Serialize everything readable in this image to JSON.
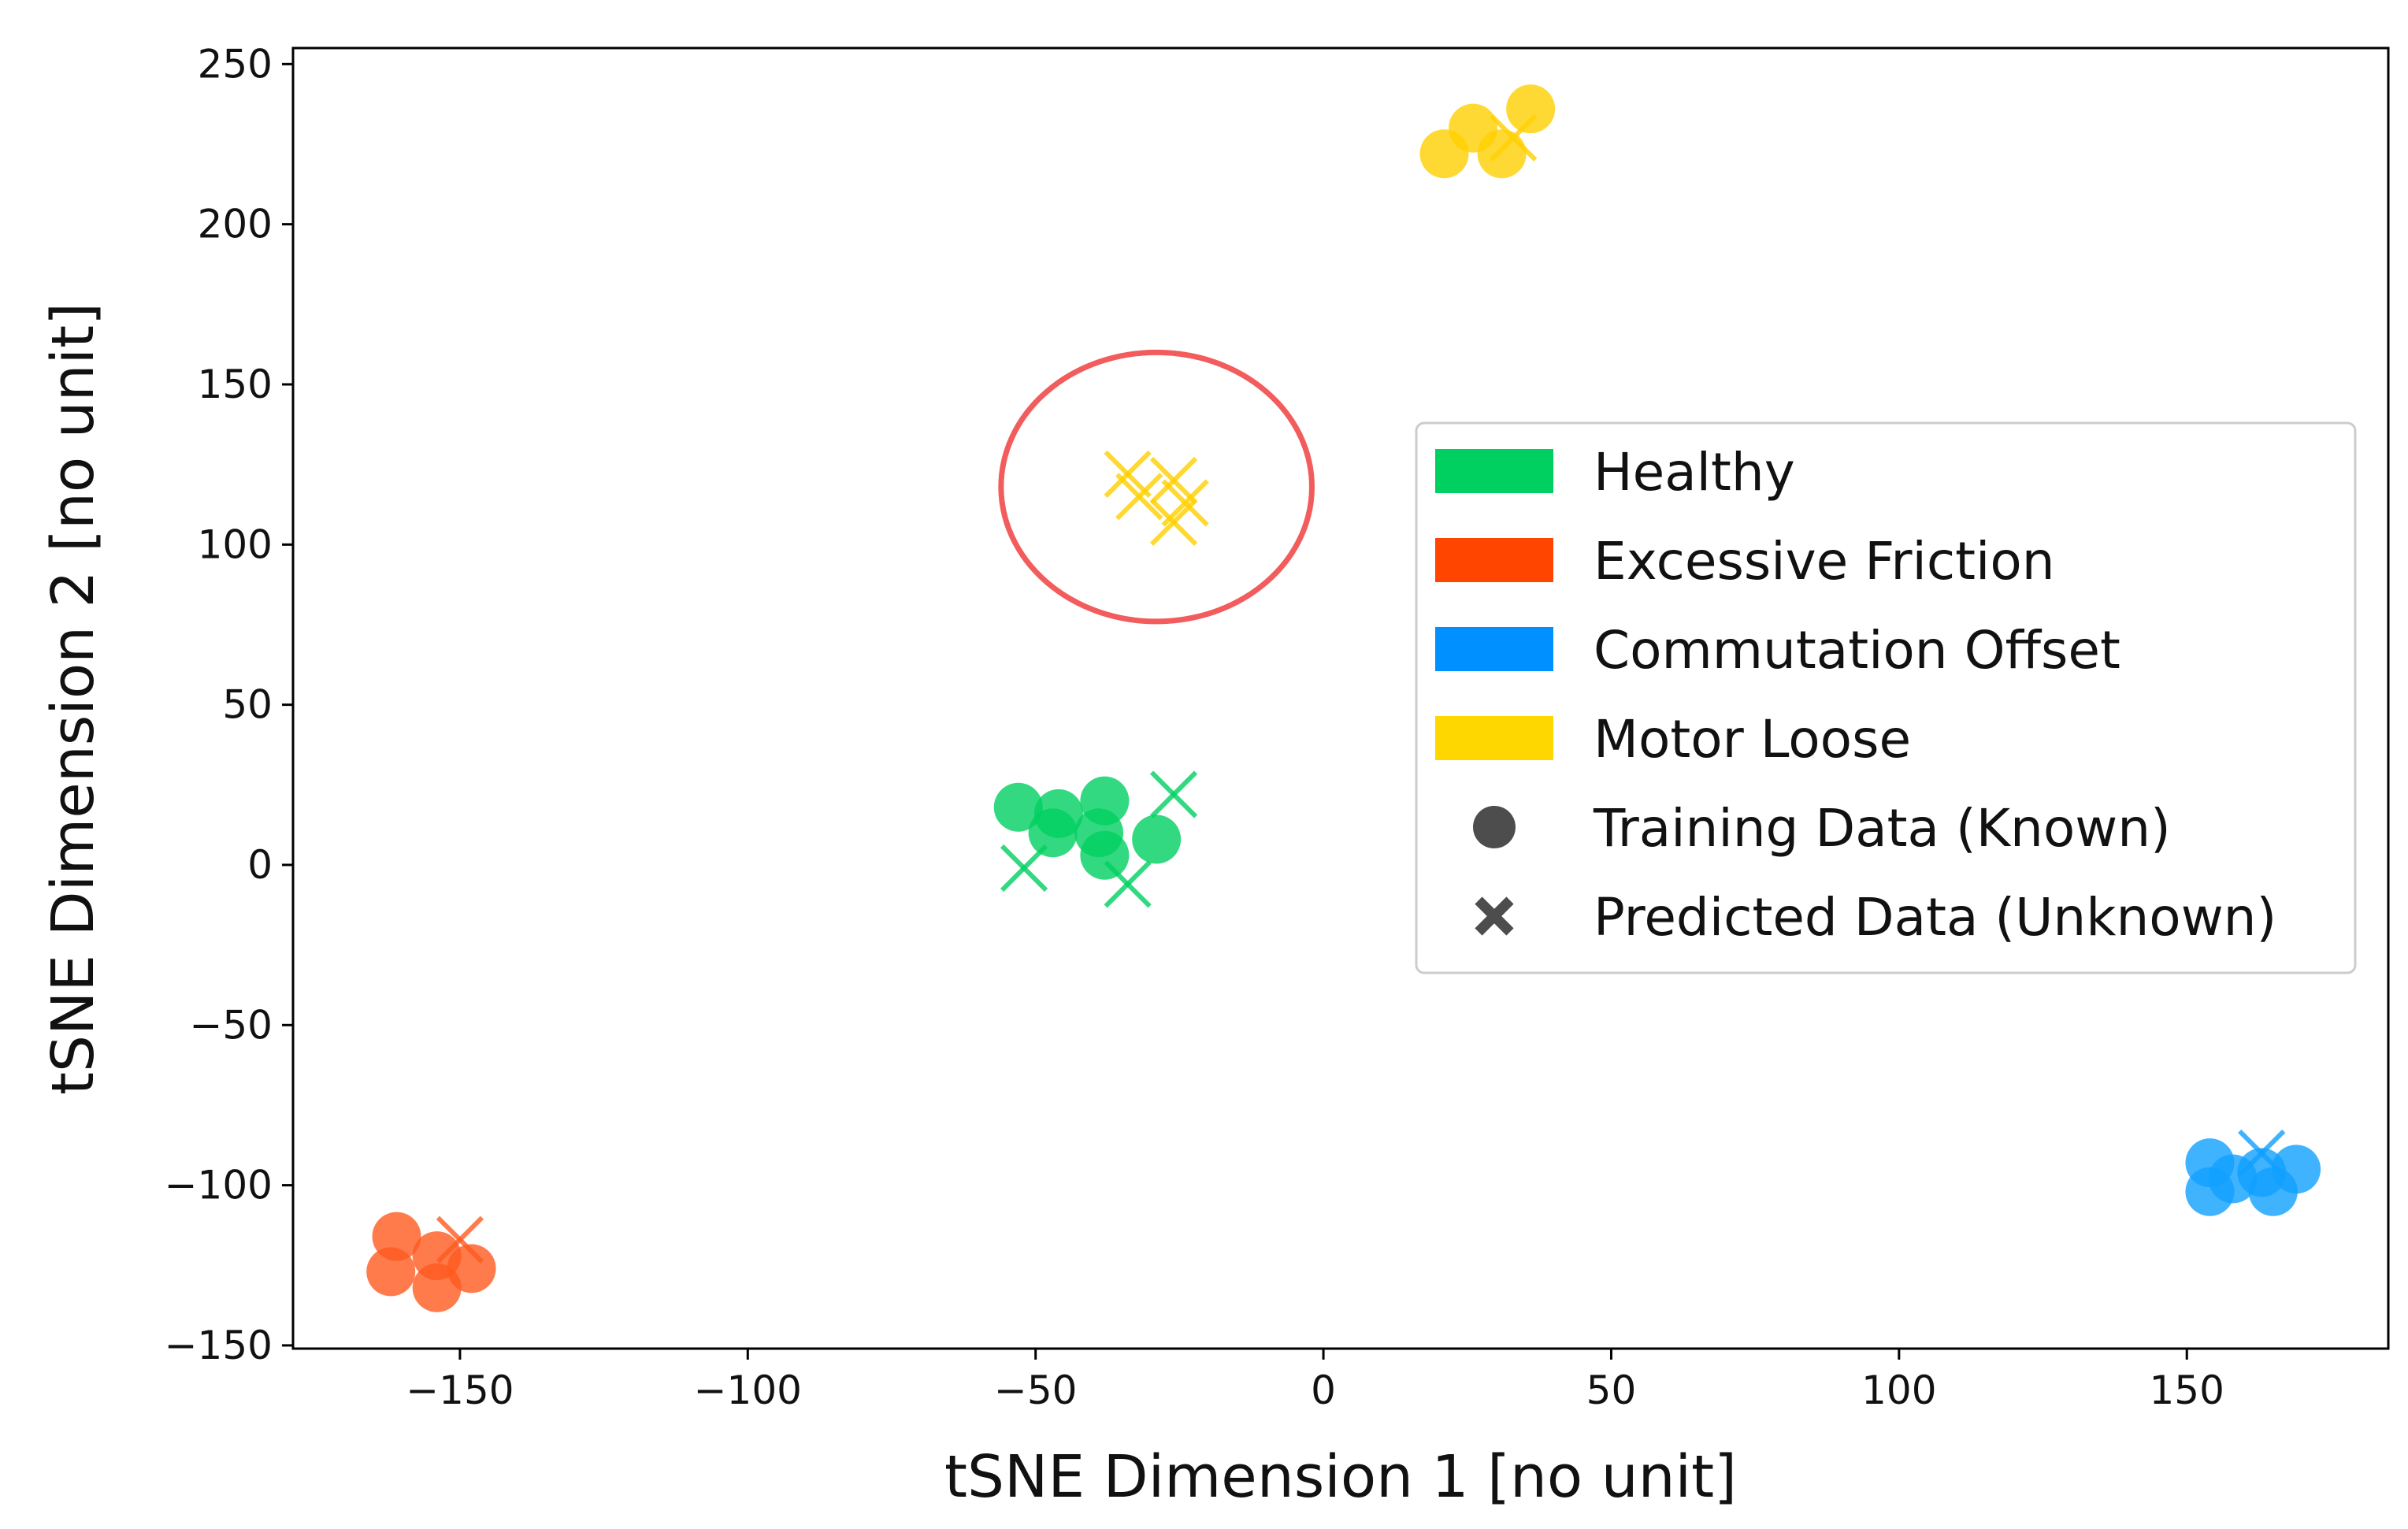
{
  "chart_data": {
    "type": "scatter",
    "xlabel": "tSNE Dimension 1 [no unit]",
    "ylabel": "tSNE Dimension 2 [no unit]",
    "xlim": [
      -179,
      185
    ],
    "ylim": [
      -151,
      255
    ],
    "xticks": [
      -150,
      -100,
      -50,
      0,
      50,
      100,
      150
    ],
    "yticks": [
      -150,
      -100,
      -50,
      0,
      50,
      100,
      150,
      200,
      250
    ],
    "xtick_labels": [
      "−150",
      "−100",
      "−50",
      "0",
      "50",
      "100",
      "150"
    ],
    "ytick_labels": [
      "−150",
      "−100",
      "−50",
      "0",
      "50",
      "100",
      "150",
      "200",
      "250"
    ],
    "grid": false,
    "legend_position": "right",
    "legend": [
      {
        "label": "Healthy",
        "kind": "patch",
        "color": "#00d060"
      },
      {
        "label": "Excessive Friction",
        "kind": "patch",
        "color": "#ff4500"
      },
      {
        "label": "Commutation Offset",
        "kind": "patch",
        "color": "#0090ff"
      },
      {
        "label": "Motor Loose",
        "kind": "patch",
        "color": "#ffd700"
      },
      {
        "label": "Training Data (Known)",
        "kind": "circle",
        "color": "#4d4d4d"
      },
      {
        "label": "Predicted Data (Unknown)",
        "kind": "x",
        "color": "#4d4d4d"
      }
    ],
    "series": [
      {
        "name": "Healthy",
        "color": "#00d060",
        "training": [
          [
            -53,
            18
          ],
          [
            -46,
            16
          ],
          [
            -47,
            10
          ],
          [
            -38,
            20
          ],
          [
            -39,
            10
          ],
          [
            -38,
            3
          ],
          [
            -29,
            8
          ]
        ],
        "predicted": [
          [
            -52,
            -1
          ],
          [
            -34,
            -6
          ],
          [
            -26,
            22
          ]
        ]
      },
      {
        "name": "Excessive Friction",
        "color": "#ff5a1f",
        "training": [
          [
            -161,
            -116
          ],
          [
            -162,
            -127
          ],
          [
            -154,
            -122
          ],
          [
            -154,
            -132
          ],
          [
            -148,
            -126
          ]
        ],
        "predicted": [
          [
            -150,
            -117
          ]
        ]
      },
      {
        "name": "Commutation Offset",
        "color": "#10a0ff",
        "training": [
          [
            154,
            -93
          ],
          [
            154,
            -102
          ],
          [
            158,
            -98
          ],
          [
            163,
            -96
          ],
          [
            165,
            -102
          ],
          [
            169,
            -95
          ]
        ],
        "predicted": [
          [
            163,
            -90
          ]
        ]
      },
      {
        "name": "Motor Loose",
        "color": "#ffd000",
        "training": [
          [
            21,
            222
          ],
          [
            26,
            230
          ],
          [
            31,
            222
          ],
          [
            36,
            236
          ]
        ],
        "predicted": [
          [
            33,
            227
          ],
          [
            -34,
            122
          ],
          [
            -32,
            115
          ],
          [
            -26,
            120
          ],
          [
            -24,
            113
          ],
          [
            -26,
            107
          ]
        ]
      }
    ],
    "annotations": [
      {
        "type": "ellipse",
        "center": [
          -29,
          118
        ],
        "radius_x": 27,
        "radius_y": 42,
        "color": "#f04040"
      }
    ]
  }
}
